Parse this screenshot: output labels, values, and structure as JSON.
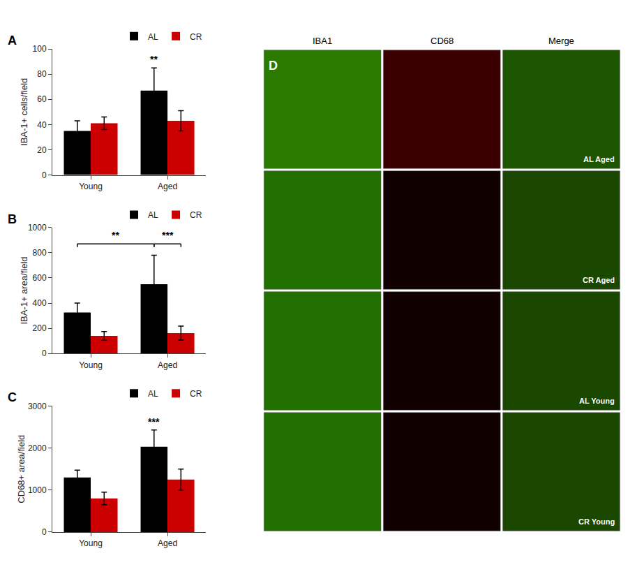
{
  "chart_data": [
    {
      "type": "bar",
      "title": "A",
      "ylabel": "IBA-1+ cells/field",
      "categories": [
        "Young",
        "Aged"
      ],
      "series": [
        {
          "name": "AL",
          "color": "#000000",
          "values": [
            35,
            67
          ],
          "errors": [
            8,
            18
          ]
        },
        {
          "name": "CR",
          "color": "#cc0000",
          "values": [
            41,
            43
          ],
          "errors": [
            5,
            8
          ]
        }
      ],
      "ylim": [
        0,
        100
      ],
      "yticks": [
        0,
        20,
        40,
        60,
        80,
        100
      ],
      "grid": false,
      "legend": "upper right",
      "annotations": [
        {
          "text": "**",
          "y": 86,
          "category": "Aged",
          "series": "AL"
        }
      ]
    },
    {
      "type": "bar",
      "title": "B",
      "ylabel": "IBA-1+ area/field",
      "categories": [
        "Young",
        "Aged"
      ],
      "series": [
        {
          "name": "AL",
          "color": "#000000",
          "values": [
            325,
            550
          ],
          "errors": [
            75,
            230
          ]
        },
        {
          "name": "CR",
          "color": "#cc0000",
          "values": [
            140,
            162
          ],
          "errors": [
            35,
            55
          ]
        }
      ],
      "ylim": [
        0,
        1000
      ],
      "yticks": [
        0,
        200,
        400,
        600,
        800,
        1000
      ],
      "grid": false,
      "legend": "upper right",
      "annotations": [
        {
          "text": "**",
          "y": 870,
          "from": {
            "category": "Young",
            "series": "AL"
          },
          "to": {
            "category": "Aged",
            "series": "AL"
          }
        },
        {
          "text": "***",
          "y": 870,
          "from": {
            "category": "Aged",
            "series": "AL"
          },
          "to": {
            "category": "Aged",
            "series": "CR"
          }
        }
      ]
    },
    {
      "type": "bar",
      "title": "C",
      "ylabel": "CD68+ area/field",
      "categories": [
        "Young",
        "Aged"
      ],
      "series": [
        {
          "name": "AL",
          "color": "#000000",
          "values": [
            1300,
            2030
          ],
          "errors": [
            175,
            400
          ]
        },
        {
          "name": "CR",
          "color": "#cc0000",
          "values": [
            800,
            1250
          ],
          "errors": [
            150,
            250
          ]
        }
      ],
      "ylim": [
        0,
        3000
      ],
      "yticks": [
        0,
        1000,
        2000,
        3000
      ],
      "grid": false,
      "legend": "upper right",
      "annotations": [
        {
          "text": "***",
          "y": 2460,
          "category": "Aged",
          "series": "AL"
        }
      ]
    },
    {
      "type": "image_grid",
      "title": "D",
      "columns": [
        "IBA1",
        "CD68",
        "Merge"
      ],
      "rows": [
        "AL Aged",
        "CR Aged",
        "AL Young",
        "CR Young"
      ],
      "colors": [
        [
          "#2a7a00",
          "#3a0000",
          "#1e5500"
        ],
        [
          "#227000",
          "#100000",
          "#1a4800"
        ],
        [
          "#227000",
          "#100000",
          "#1a4800"
        ],
        [
          "#227000",
          "#100000",
          "#1a4800"
        ]
      ],
      "tick_labels": false
    }
  ]
}
